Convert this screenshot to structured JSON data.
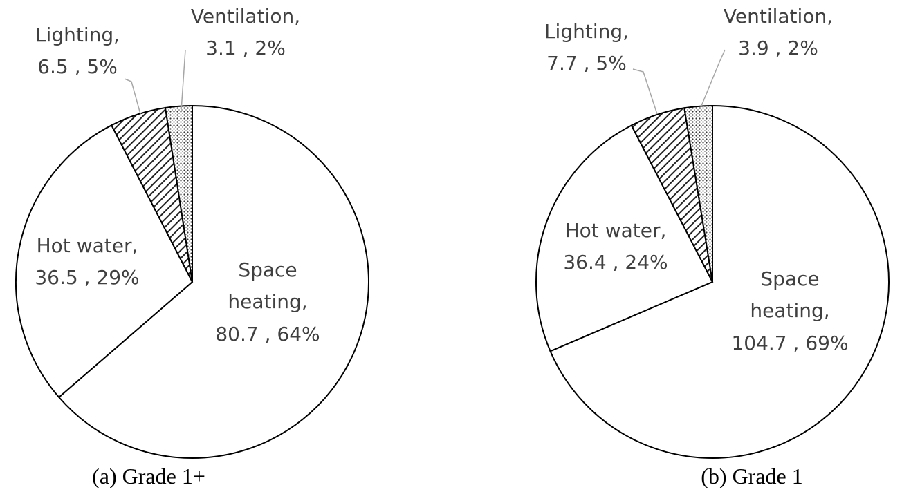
{
  "chart_data": [
    {
      "type": "pie",
      "title": "(a) Grade 1+",
      "categories": [
        "Space heating,",
        "Hot water,",
        "Lighting,",
        "Ventilation,"
      ],
      "values": [
        80.7,
        36.5,
        6.5,
        3.1
      ],
      "value_labels": [
        "80.7 , 64%",
        "36.5 , 29%",
        "6.5 , 5%",
        "3.1 , 2%"
      ],
      "patterns": [
        "none",
        "none",
        "hatch",
        "dots"
      ],
      "color": "#ffffff"
    },
    {
      "type": "pie",
      "title": "(b) Grade 1",
      "categories": [
        "Space heating,",
        "Hot water,",
        "Lighting,",
        "Ventilation,"
      ],
      "values": [
        104.7,
        36.4,
        7.7,
        3.9
      ],
      "value_labels": [
        "104.7 , 69%",
        "36.4 , 24%",
        "7.7 , 5%",
        "3.9 , 2%"
      ],
      "patterns": [
        "none",
        "none",
        "hatch",
        "dots"
      ],
      "color": "#ffffff"
    }
  ]
}
